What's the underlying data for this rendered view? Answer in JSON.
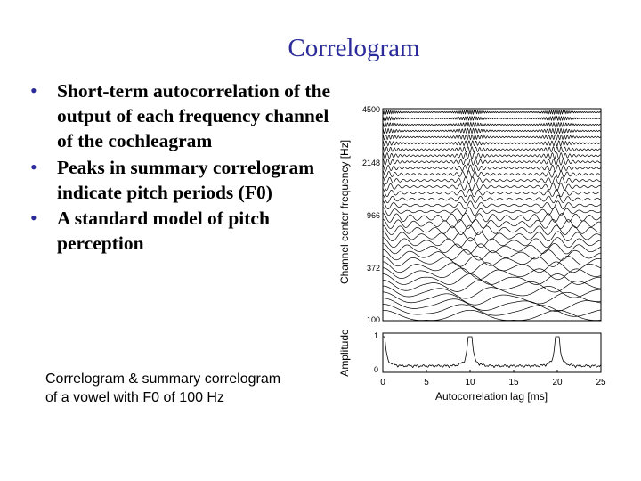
{
  "slide": {
    "title": "Correlogram",
    "bullets": [
      "Short-term autocorrelation of the output of each frequency channel of the cochleagram",
      "Peaks in summary correlogram indicate pitch periods (F0)",
      "A standard model of pitch perception"
    ],
    "caption_lines": [
      "Correlogram & summary correlogram",
      "of a vowel with F0 of 100 Hz"
    ]
  },
  "figure": {
    "top_ylabel": "Channel center frequency [Hz]",
    "top_yticks": [
      "4500",
      "2148",
      "966",
      "372",
      "100"
    ],
    "bottom_ylabel": "Amplitude",
    "bottom_yticks": [
      "1",
      "0"
    ],
    "xticks": [
      "0",
      "5",
      "10",
      "15",
      "20",
      "25"
    ],
    "xlabel": "Autocorrelation lag [ms]"
  },
  "chart_data": [
    {
      "type": "line",
      "title": "",
      "xlabel": "",
      "ylabel": "Channel center frequency [Hz]",
      "xlim": [
        0,
        25
      ],
      "y_tick_labels": [
        4500,
        2148,
        966,
        372,
        100
      ],
      "y_scale": "log-spaced channels",
      "period_ms": 10,
      "description_of_series": "one autocorrelation trace per frequency channel, stacked"
    },
    {
      "type": "line",
      "xlabel": "Autocorrelation lag [ms]",
      "ylabel": "Amplitude",
      "xlim": [
        0,
        25
      ],
      "ylim": [
        0,
        1
      ],
      "peaks": [
        {
          "x": 0,
          "y": 1
        },
        {
          "x": 10,
          "y": 1
        },
        {
          "x": 20,
          "y": 1
        }
      ]
    }
  ]
}
